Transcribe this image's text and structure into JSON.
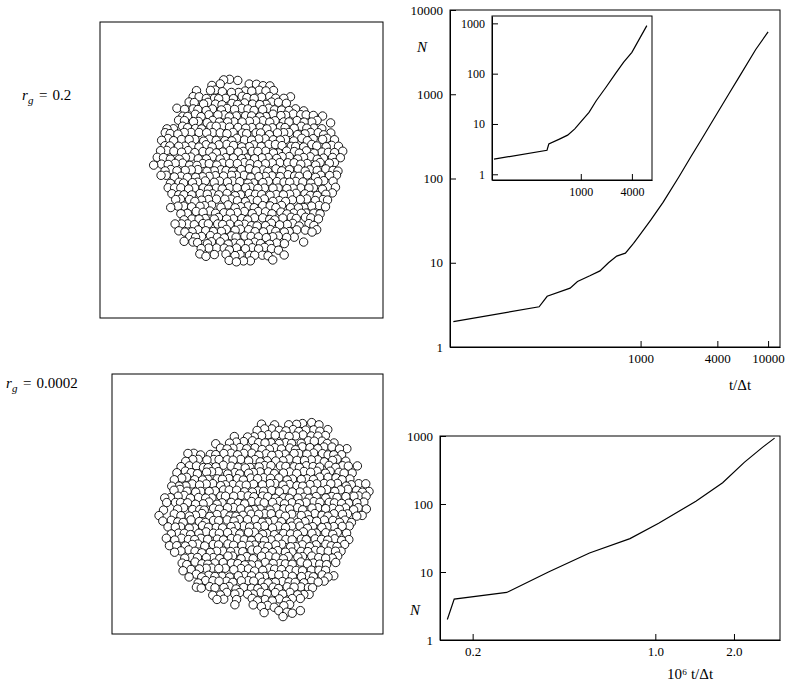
{
  "chart_data": [
    {
      "type": "line",
      "log": true,
      "x_label": "t/Δt",
      "y_label": "N",
      "xlim": [
        32,
        12400
      ],
      "ylim": [
        1,
        10000
      ],
      "xticks": [
        1000,
        4000,
        10000
      ],
      "yticks": [
        1,
        10,
        100,
        1000,
        10000
      ],
      "x": [
        34,
        160,
        185,
        280,
        320,
        400,
        480,
        560,
        650,
        760,
        880,
        1000,
        1200,
        1500,
        2000,
        2500,
        3000,
        4000,
        5000,
        6000,
        8000,
        10000
      ],
      "series": [
        {
          "color": "#000000",
          "values": [
            2,
            3,
            4,
            5,
            6,
            7,
            8,
            10,
            12,
            13,
            17,
            22,
            32,
            52,
            105,
            185,
            290,
            600,
            1050,
            1650,
            3400,
            5500
          ]
        }
      ]
    },
    {
      "type": "line",
      "log": true,
      "xlim": [
        90,
        6900
      ],
      "ylim": [
        0.77,
        1400
      ],
      "xticks": [
        1000,
        4000
      ],
      "yticks": [
        1,
        10,
        100,
        1000
      ],
      "x": [
        95,
        400,
        420,
        560,
        700,
        850,
        1000,
        1250,
        1520,
        2000,
        2560,
        3200,
        4000,
        5000,
        6000
      ],
      "series": [
        {
          "color": "#000000",
          "values": [
            2,
            3,
            4,
            5,
            6,
            8,
            11,
            17,
            29,
            55,
            100,
            170,
            265,
            520,
            900
          ]
        }
      ]
    },
    {
      "type": "line",
      "log": true,
      "x_label": "10⁶ t/Δt",
      "y_label": "N",
      "xlim": [
        0.15,
        3.0
      ],
      "ylim": [
        1,
        1000
      ],
      "xticks": [
        0.2,
        {
          "value": 1,
          "label": "1.0"
        },
        {
          "value": 2,
          "label": "2.0"
        }
      ],
      "yticks": [
        1,
        10,
        100,
        1000
      ],
      "x": [
        0.16,
        0.17,
        0.27,
        0.39,
        0.56,
        0.8,
        1.03,
        1.43,
        1.81,
        2.19,
        2.57,
        2.86
      ],
      "series": [
        {
          "color": "#000000",
          "values": [
            2,
            4,
            5,
            10,
            19,
            31,
            52,
            110,
            205,
            410,
            680,
            930
          ]
        }
      ]
    }
  ],
  "snapshots": [
    {
      "symbol": "r",
      "subscript": "g",
      "relation": "=",
      "value": 0.2
    },
    {
      "symbol": "r",
      "subscript": "g",
      "relation": "=",
      "value": 0.0002
    }
  ]
}
